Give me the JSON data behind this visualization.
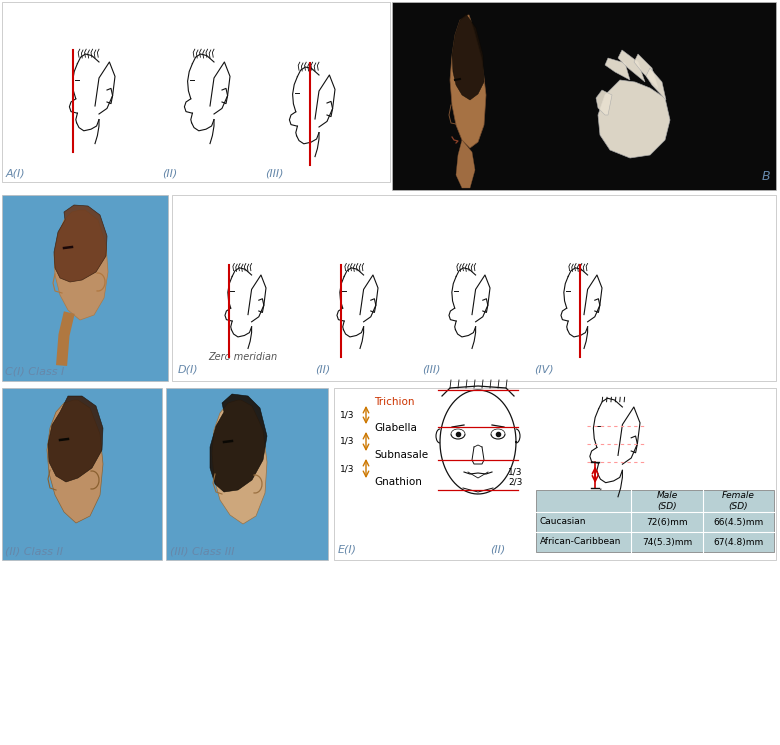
{
  "bg_color": "#ffffff",
  "panel_A_labels": [
    "A(I)",
    "(II)",
    "(III)"
  ],
  "panel_B_label": "B",
  "panel_C_label": "C(I) Class I",
  "panel_D_labels": [
    "D(I)",
    "(II)",
    "(III)",
    "(IV)"
  ],
  "panel_D_sublabel": "Zero meridian",
  "panel_E_label": "E(I)",
  "panel_E2_label": "(II)",
  "class_labels": [
    "(II) Class II",
    "(III) Class III"
  ],
  "trichion": "Trichion",
  "glabella": "Glabella",
  "subnasale": "Subnasale",
  "gnathion": "Gnathion",
  "one_third": "1/3",
  "two_thirds": "2/3",
  "table_rows": [
    [
      "Caucasian",
      "72(6)mm",
      "66(4.5)mm"
    ],
    [
      "African-Caribbean",
      "74(5.3)mm",
      "67(4.8)mm"
    ]
  ],
  "table_bg": "#b8d0d4",
  "line_red": "#cc0000",
  "label_color_blue": "#6688aa",
  "sketch_color": "#111111",
  "photo_bg_blue": "#5b9fc8",
  "photo_bg_dark": "#0a0a0a",
  "photo_skin_light": "#c49060",
  "photo_skin_med": "#b07840",
  "photo_hair_brown": "#6b3a1f",
  "photo_hair_dark": "#2a1a0a"
}
